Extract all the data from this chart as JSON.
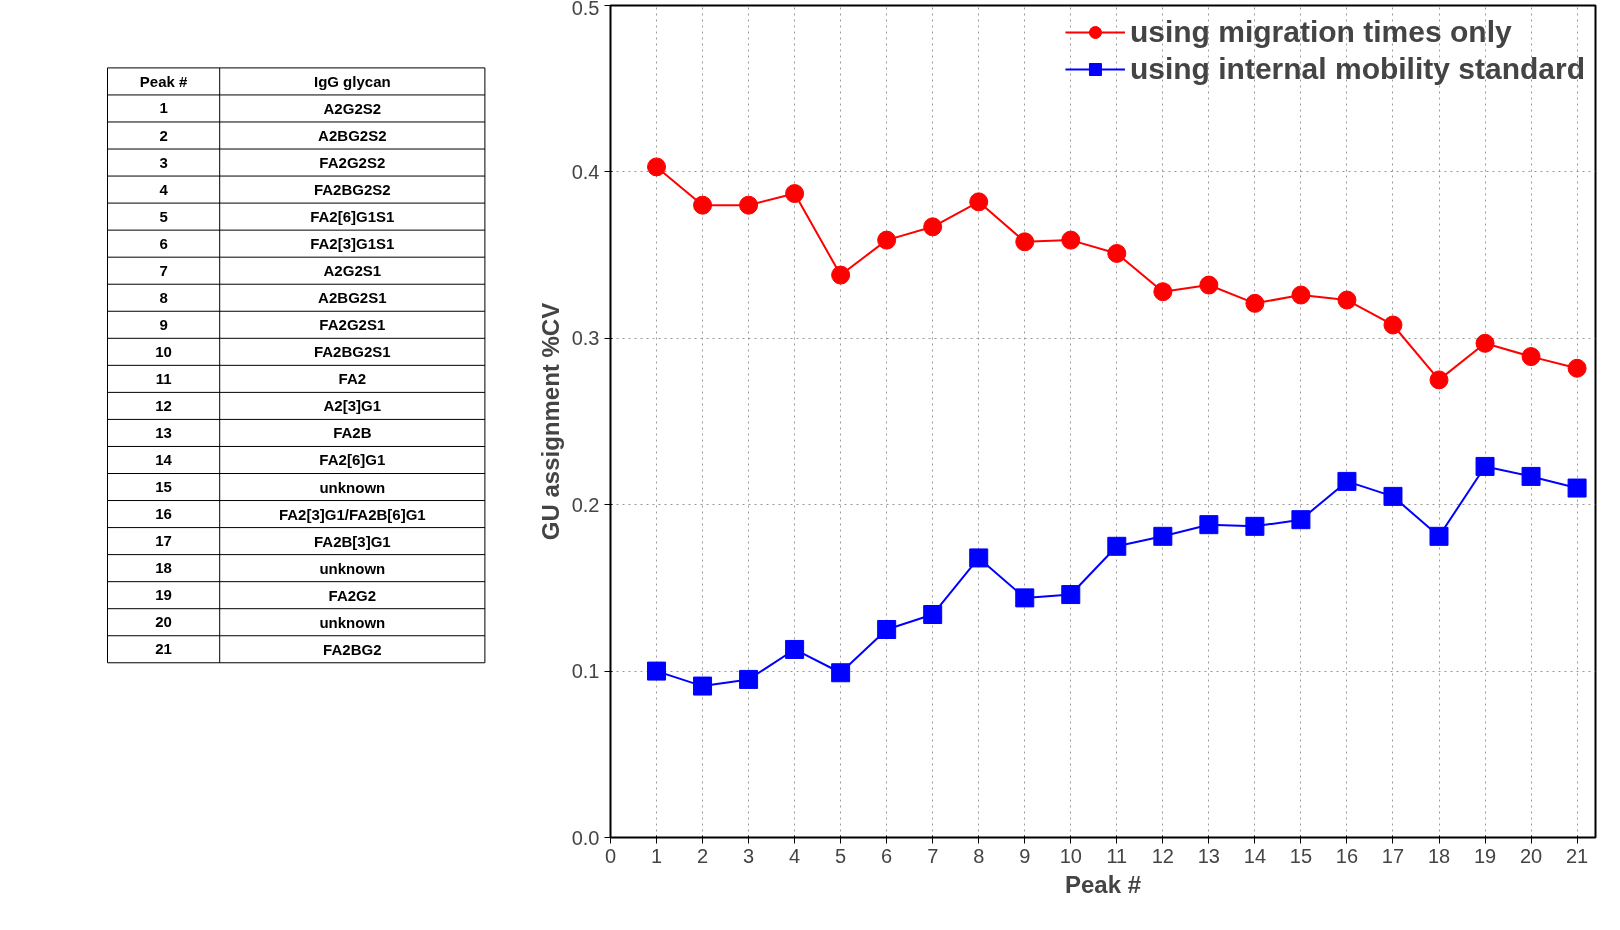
{
  "chart_data": {
    "type": "line",
    "xlabel": "Peak #",
    "ylabel": "GU assignment %CV",
    "x": [
      1,
      2,
      3,
      4,
      5,
      6,
      7,
      8,
      9,
      10,
      11,
      12,
      13,
      14,
      15,
      16,
      17,
      18,
      19,
      20,
      21
    ],
    "series": [
      {
        "name": "using migration times only",
        "color": "#ff0000",
        "marker": "circle",
        "values": [
          0.403,
          0.38,
          0.38,
          0.387,
          0.338,
          0.359,
          0.367,
          0.382,
          0.358,
          0.359,
          0.351,
          0.328,
          0.332,
          0.321,
          0.326,
          0.323,
          0.308,
          0.275,
          0.297,
          0.289,
          0.282
        ]
      },
      {
        "name": "using internal mobility standard",
        "color": "#0000ff",
        "marker": "square",
        "values": [
          0.1,
          0.091,
          0.095,
          0.113,
          0.099,
          0.125,
          0.134,
          0.168,
          0.144,
          0.146,
          0.175,
          0.181,
          0.188,
          0.187,
          0.191,
          0.214,
          0.205,
          0.181,
          0.223,
          0.217,
          0.21
        ]
      }
    ],
    "xlim": [
      0,
      21.4
    ],
    "ylim": [
      0,
      0.5
    ],
    "xticks": [
      0,
      1,
      2,
      3,
      4,
      5,
      6,
      7,
      8,
      9,
      10,
      11,
      12,
      13,
      14,
      15,
      16,
      17,
      18,
      19,
      20,
      21
    ],
    "yticks": [
      {
        "value": 0,
        "label": "0.0"
      },
      0.1,
      0.2,
      0.3,
      0.4,
      0.5
    ],
    "grid": true,
    "legend": "top right",
    "line_style": "solid",
    "annotations": [
      "Peak #",
      "IgG glycan",
      "1",
      "A2G2S2",
      "2",
      "A2BG2S2",
      "3",
      "FA2G2S2",
      "4",
      "FA2BG2S2",
      "5",
      "FA2[6]G1S1",
      "6",
      "FA2[3]G1S1",
      "7",
      "A2G2S1",
      "8",
      "A2BG2S1",
      "9",
      "FA2G2S1",
      "10",
      "FA2BG2S1",
      "11",
      "FA2",
      "12",
      "A2[3]G1",
      "13",
      "FA2B",
      "14",
      "FA2[6]G1",
      "15",
      "unknown",
      "16",
      "FA2[3]G1/FA2B[6]G1",
      "17",
      "FA2B[3]G1",
      "18",
      "unknown",
      "19",
      "FA2G2",
      "20",
      "unknown",
      "21",
      "FA2BG2"
    ]
  }
}
